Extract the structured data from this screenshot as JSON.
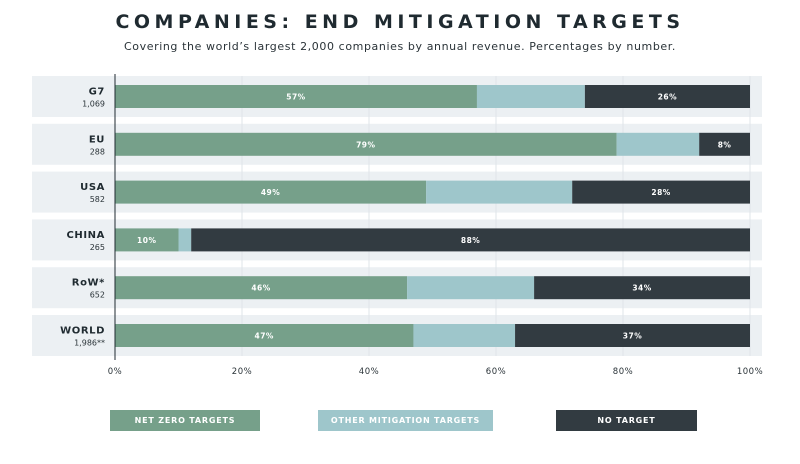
{
  "title": "COMPANIES: END MITIGATION TARGETS",
  "subtitle": "Covering the world’s largest 2,000 companies by annual revenue. Percentages by number.",
  "colors": {
    "net_zero": "#76a08a",
    "other": "#9ec6cb",
    "none": "#323b41",
    "row_bg": "#ecf0f3"
  },
  "chart_data": {
    "type": "bar",
    "orientation": "horizontal",
    "stacked": true,
    "title": "COMPANIES: END MITIGATION TARGETS",
    "subtitle": "Covering the world’s largest 2,000 companies by annual revenue. Percentages by number.",
    "xlim": [
      0,
      100
    ],
    "x_ticks": [
      "0%",
      "20%",
      "40%",
      "60%",
      "80%",
      "100%"
    ],
    "x_tick_values": [
      0,
      20,
      40,
      60,
      80,
      100
    ],
    "categories": [
      {
        "name": "G7",
        "count": "1,069"
      },
      {
        "name": "EU",
        "count": "288"
      },
      {
        "name": "USA",
        "count": "582"
      },
      {
        "name": "CHINA",
        "count": "265"
      },
      {
        "name": "RoW*",
        "count": "652"
      },
      {
        "name": "WORLD",
        "count": "1,986**"
      }
    ],
    "series": [
      {
        "name": "NET ZERO TARGETS",
        "values": [
          57,
          79,
          49,
          10,
          46,
          47
        ],
        "labels": [
          "57%",
          "79%",
          "49%",
          "10%",
          "46%",
          "47%"
        ]
      },
      {
        "name": "OTHER MITIGATION TARGETS",
        "values": [
          17,
          13,
          23,
          2,
          20,
          16
        ],
        "labels": [
          "",
          "",
          "",
          "",
          "",
          ""
        ]
      },
      {
        "name": "NO TARGET",
        "values": [
          26,
          8,
          28,
          88,
          34,
          37
        ],
        "labels": [
          "26%",
          "8%",
          "28%",
          "88%",
          "34%",
          "37%"
        ]
      }
    ],
    "legend": [
      "NET ZERO TARGETS",
      "OTHER MITIGATION TARGETS",
      "NO TARGET"
    ]
  }
}
